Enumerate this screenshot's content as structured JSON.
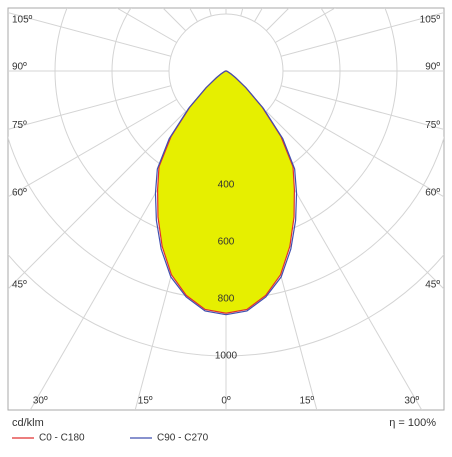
{
  "chart_data": {
    "type": "polar",
    "unit_label": "cd/klm",
    "efficiency": "η = 100%",
    "angles": [
      0,
      5,
      10,
      15,
      20,
      25,
      30,
      35,
      40,
      45,
      50,
      55,
      60,
      65,
      70,
      75,
      80,
      85,
      90
    ],
    "series": [
      {
        "name": "C0 - C180",
        "color": "#e03030",
        "fill": "#e6ef00",
        "values": [
          850,
          840,
          800,
          740,
          655,
          565,
          480,
          410,
          300,
          180,
          90,
          40,
          20,
          10,
          6,
          4,
          2,
          1,
          0
        ]
      },
      {
        "name": "C90 - C270",
        "color": "#4050b0",
        "values": [
          855,
          845,
          805,
          748,
          665,
          578,
          495,
          420,
          310,
          185,
          92,
          42,
          20,
          10,
          6,
          4,
          2,
          1,
          0
        ]
      }
    ],
    "rlim": [
      0,
      1000
    ],
    "rticks": [
      400,
      600,
      800,
      1000
    ],
    "angle_ticks": [
      {
        "value": 0,
        "label": "0º"
      },
      {
        "value": 15,
        "label": "15º"
      },
      {
        "value": 30,
        "label": "30º"
      },
      {
        "value": 45,
        "label": "45º"
      },
      {
        "value": 60,
        "label": "60º"
      },
      {
        "value": 75,
        "label": "75º"
      },
      {
        "value": 90,
        "label": "90º"
      },
      {
        "value": 105,
        "label": "105º"
      }
    ]
  }
}
